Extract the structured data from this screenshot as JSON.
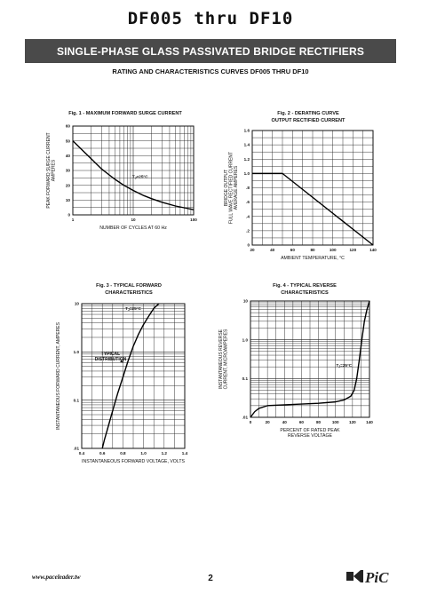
{
  "document": {
    "title": "DF005  thru  DF10",
    "banner": "SINGLE-PHASE GLASS PASSIVATED BRIDGE RECTIFIERS",
    "subtitle": "RATING AND CHARACTERISTICS CURVES DF005 THRU DF10",
    "footer_url": "www.paceleader.tw",
    "page_number": "2",
    "logo_text": "PiC"
  },
  "chart_data": [
    {
      "id": "fig1",
      "type": "line",
      "title": "Fig. 1 - MAXIMUM FORWARD SURGE CURRENT",
      "xlabel": "NUMBER OF CYCLES AT 60 Hz",
      "ylabel": [
        "PEAK FORWARD SURGE CURRENT",
        "AMPERES"
      ],
      "xscale": "log",
      "xlim": [
        1,
        100
      ],
      "ylim": [
        0,
        60
      ],
      "xticks": [
        {
          "v": 1,
          "t": "1"
        },
        {
          "v": 10,
          "t": "10"
        },
        {
          "v": 100,
          "t": "100"
        }
      ],
      "yticks": [
        {
          "v": 0,
          "t": "0"
        },
        {
          "v": 10,
          "t": "10"
        },
        {
          "v": 20,
          "t": "20"
        },
        {
          "v": 30,
          "t": "30"
        },
        {
          "v": 40,
          "t": "40"
        },
        {
          "v": 50,
          "t": "50"
        },
        {
          "v": 60,
          "t": "60"
        }
      ],
      "annotation": "TJ=25°C",
      "annotation_at": [
        13,
        25
      ],
      "series": [
        {
          "x": [
            1,
            1.5,
            2,
            3,
            4,
            5,
            7,
            10,
            15,
            20,
            30,
            50,
            70,
            100
          ],
          "y": [
            50,
            43,
            38,
            31,
            27,
            24,
            20,
            16.5,
            13,
            11,
            8.5,
            6,
            4.8,
            3.5
          ]
        }
      ]
    },
    {
      "id": "fig2",
      "type": "line",
      "title": [
        "Fig. 2 - DERATING CURVE",
        "OUTPUT RECTIFIED CURRENT"
      ],
      "xlabel": "AMBIENT TEMPERATURE, °C",
      "ylabel": [
        "BRIDGE OUTPUT",
        "FULL WAVE RECTIFIED CURRENT",
        "AVERAGE AMPERES"
      ],
      "xlim": [
        20,
        140
      ],
      "ylim": [
        0,
        1.6
      ],
      "xticks": [
        {
          "v": 20,
          "t": "20"
        },
        {
          "v": 40,
          "t": "40"
        },
        {
          "v": 60,
          "t": "60"
        },
        {
          "v": 80,
          "t": "80"
        },
        {
          "v": 100,
          "t": "100"
        },
        {
          "v": 120,
          "t": "120"
        },
        {
          "v": 140,
          "t": "140"
        }
      ],
      "yticks": [
        {
          "v": 0,
          "t": "0"
        },
        {
          "v": 0.2,
          "t": ".2"
        },
        {
          "v": 0.4,
          "t": ".4"
        },
        {
          "v": 0.6,
          "t": ".6"
        },
        {
          "v": 0.8,
          "t": ".8"
        },
        {
          "v": 1.0,
          "t": "1.0"
        },
        {
          "v": 1.2,
          "t": "1.2"
        },
        {
          "v": 1.4,
          "t": "1.4"
        },
        {
          "v": 1.6,
          "t": "1.6"
        }
      ],
      "series": [
        {
          "x": [
            20,
            50,
            140
          ],
          "y": [
            1.0,
            1.0,
            0
          ]
        }
      ]
    },
    {
      "id": "fig3",
      "type": "line",
      "title": [
        "Fig. 3 - TYPICAL FORWARD",
        "CHARACTERISTICS"
      ],
      "xlabel": "INSTANTANEOUS FORWARD VOLTAGE, VOLTS",
      "ylabel": [
        "INSTANTANEOUS FORWARD CURRENT, AMPERES"
      ],
      "yscale": "log",
      "xlim": [
        0.4,
        1.4
      ],
      "ylim": [
        0.01,
        10
      ],
      "xticks": [
        {
          "v": 0.4,
          "t": "0.4"
        },
        {
          "v": 0.6,
          "t": "0.6"
        },
        {
          "v": 0.8,
          "t": "0.8"
        },
        {
          "v": 1.0,
          "t": "1.0"
        },
        {
          "v": 1.2,
          "t": "1.2"
        },
        {
          "v": 1.4,
          "t": "1.4"
        }
      ],
      "yticks": [
        {
          "v": 0.01,
          "t": ".01"
        },
        {
          "v": 0.1,
          "t": "0.1"
        },
        {
          "v": 1,
          "t": "1.0"
        },
        {
          "v": 10,
          "t": "10"
        }
      ],
      "annotation": "TJ=25°C",
      "annotation_at": [
        0.9,
        7.5
      ],
      "annotation2": [
        "TYPICAL",
        "DISTRIBUTION"
      ],
      "annotation2_at": [
        0.68,
        0.85
      ],
      "arrow_to": [
        0.8,
        0.6
      ],
      "series": [
        {
          "x": [
            0.6,
            0.62,
            0.65,
            0.7,
            0.75,
            0.8,
            0.85,
            0.9,
            0.95,
            1.0,
            1.05,
            1.1,
            1.15
          ],
          "y": [
            0.01,
            0.015,
            0.025,
            0.06,
            0.14,
            0.3,
            0.65,
            1.3,
            2.3,
            3.7,
            5.5,
            8.0,
            10
          ]
        }
      ]
    },
    {
      "id": "fig4",
      "type": "line",
      "title": [
        "Fig. 4 - TYPICAL REVERSE",
        "CHARACTERISTICS"
      ],
      "xlabel": [
        "PERCENT OF RATED PEAK",
        "REVERSE VOLTAGE"
      ],
      "ylabel": [
        "INSTANTANEOUS REVERSE",
        "CURRENT, MICROAMPERES"
      ],
      "yscale": "log",
      "xlim": [
        0,
        140
      ],
      "ylim": [
        0.01,
        10
      ],
      "xticks": [
        {
          "v": 0,
          "t": "0"
        },
        {
          "v": 20,
          "t": "20"
        },
        {
          "v": 40,
          "t": "40"
        },
        {
          "v": 60,
          "t": "60"
        },
        {
          "v": 80,
          "t": "80"
        },
        {
          "v": 100,
          "t": "100"
        },
        {
          "v": 120,
          "t": "120"
        },
        {
          "v": 140,
          "t": "140"
        }
      ],
      "yticks": [
        {
          "v": 0.01,
          "t": ".01"
        },
        {
          "v": 0.1,
          "t": "0.1"
        },
        {
          "v": 1,
          "t": "1.0"
        },
        {
          "v": 10,
          "t": "10"
        }
      ],
      "annotation": "TJ=25°C",
      "annotation_at": [
        110,
        0.2
      ],
      "series": [
        {
          "x": [
            0,
            5,
            10,
            20,
            40,
            60,
            80,
            100,
            110,
            118,
            122,
            125,
            128,
            131,
            134,
            137,
            140
          ],
          "y": [
            0.01,
            0.014,
            0.017,
            0.02,
            0.021,
            0.022,
            0.023,
            0.025,
            0.028,
            0.035,
            0.05,
            0.1,
            0.3,
            1.0,
            3.0,
            6.0,
            10
          ]
        }
      ]
    }
  ]
}
